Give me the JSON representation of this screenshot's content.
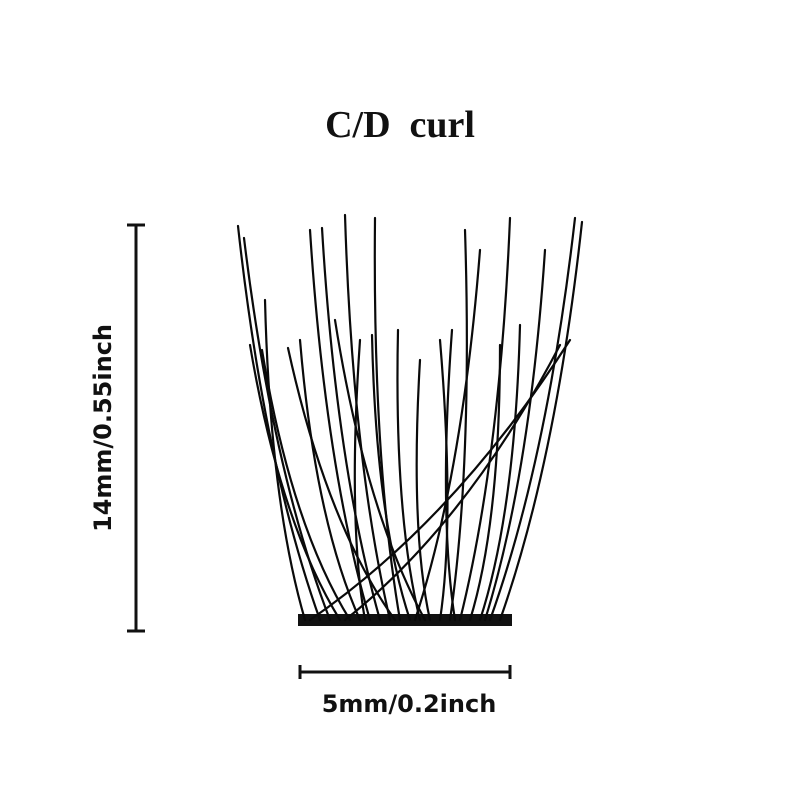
{
  "title": "C/D  curl",
  "height_label": "14mm/0.55inch",
  "width_label": "5mm/0.2inch",
  "product": "lash-cluster"
}
